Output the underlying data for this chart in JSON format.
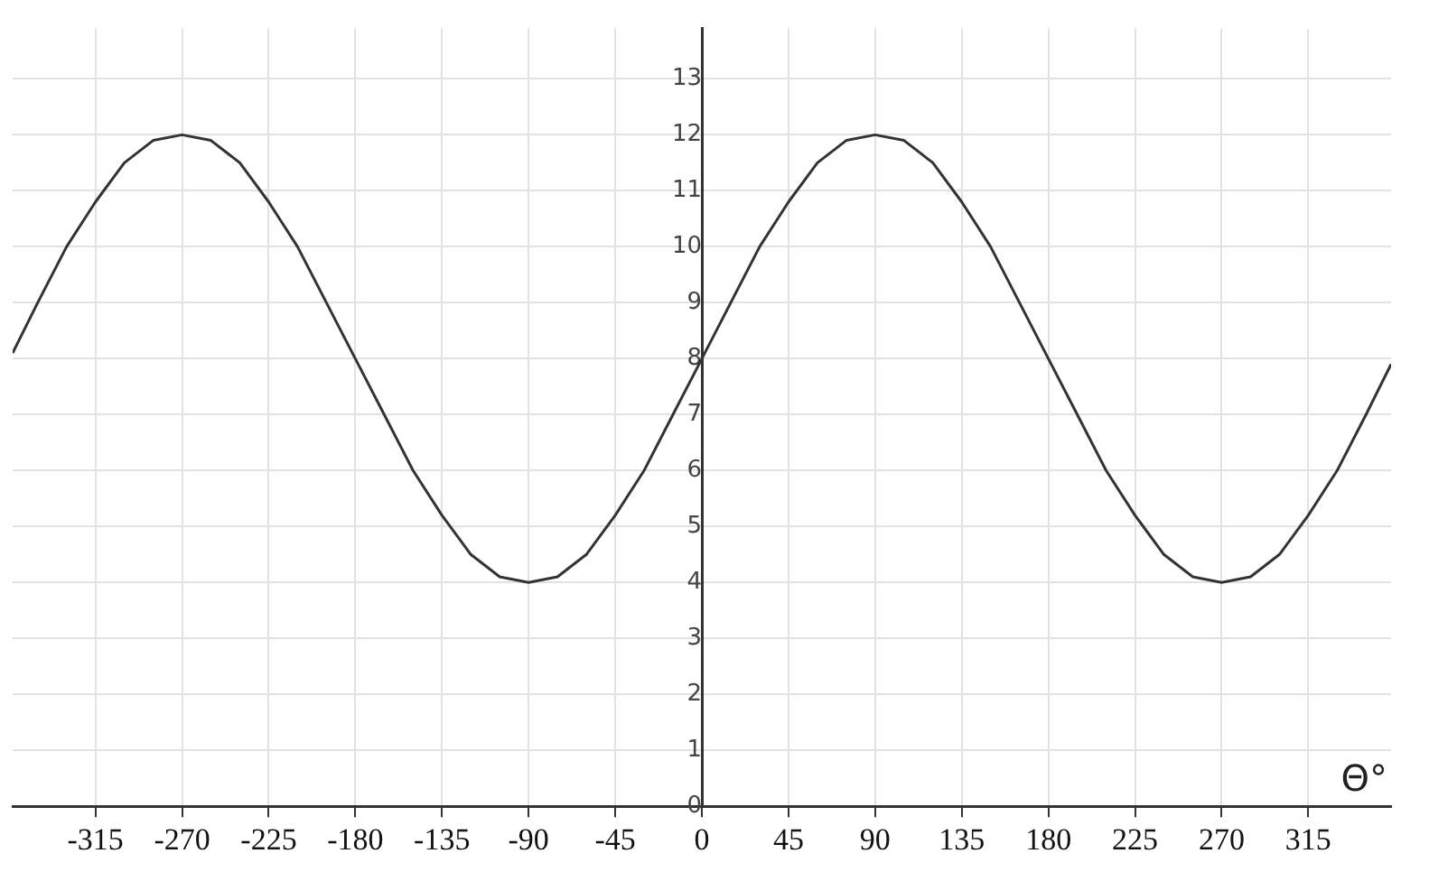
{
  "chart_data": {
    "type": "line",
    "xlabel": "Θ°",
    "x": [
      -358,
      -345,
      -330,
      -315,
      -300,
      -285,
      -270,
      -255,
      -240,
      -225,
      -210,
      -195,
      -180,
      -165,
      -150,
      -135,
      -120,
      -105,
      -90,
      -75,
      -60,
      -45,
      -30,
      -15,
      0,
      15,
      30,
      45,
      60,
      75,
      90,
      105,
      120,
      135,
      150,
      165,
      180,
      195,
      210,
      225,
      240,
      255,
      270,
      285,
      300,
      315,
      330,
      345,
      358
    ],
    "series": [
      {
        "color": "#333333",
        "values": [
          8.1,
          9.0,
          10,
          10.8,
          11.5,
          11.9,
          12,
          11.9,
          11.5,
          10.8,
          10,
          9.0,
          8,
          7.0,
          6,
          5.2,
          4.5,
          4.1,
          4,
          4.1,
          4.5,
          5.2,
          6,
          7.0,
          8,
          9.0,
          10,
          10.8,
          11.5,
          11.9,
          12,
          11.9,
          11.5,
          10.8,
          10,
          9.0,
          8,
          7.0,
          6,
          5.2,
          4.5,
          4.1,
          4,
          4.1,
          4.5,
          5.2,
          6,
          7.0,
          7.9
        ]
      }
    ],
    "xlim": [
      -358,
      358
    ],
    "ylim": [
      0,
      13.9
    ],
    "xticks": [
      -315,
      -270,
      -225,
      -180,
      -135,
      -90,
      -45,
      0,
      45,
      90,
      135,
      180,
      225,
      270,
      315
    ],
    "yticks": [
      0,
      1,
      2,
      3,
      4,
      5,
      6,
      7,
      8,
      9,
      10,
      11,
      12,
      13
    ],
    "grid": true,
    "legend": false,
    "marker": "none",
    "line_style": "solid"
  }
}
